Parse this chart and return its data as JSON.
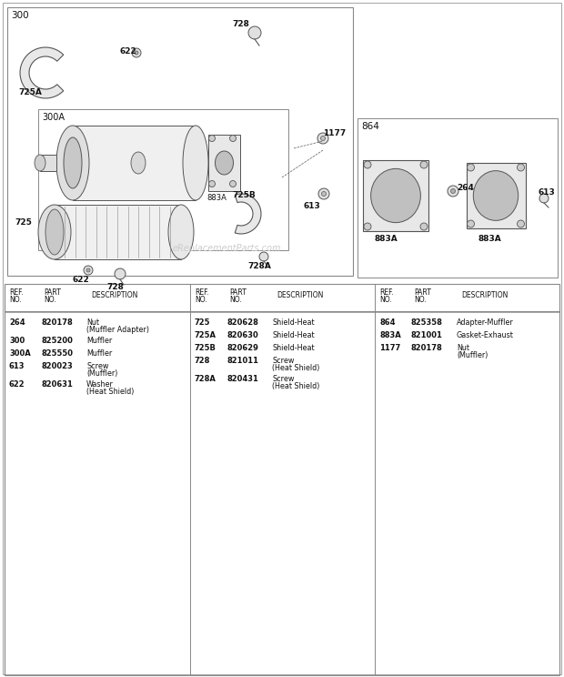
{
  "bg_color": "#ffffff",
  "watermark": "eReplacementParts.com",
  "table": {
    "col1": [
      [
        "264",
        "820178",
        "Nut",
        "(Muffler Adapter)"
      ],
      [
        "300",
        "825200",
        "Muffler",
        ""
      ],
      [
        "300A",
        "825550",
        "Muffler",
        ""
      ],
      [
        "613",
        "820023",
        "Screw",
        "(Muffler)"
      ],
      [
        "622",
        "820631",
        "Washer",
        "(Heat Shield)"
      ]
    ],
    "col2": [
      [
        "725",
        "820628",
        "Shield-Heat",
        ""
      ],
      [
        "725A",
        "820630",
        "Shield-Heat",
        ""
      ],
      [
        "725B",
        "820629",
        "Shield-Heat",
        ""
      ],
      [
        "728",
        "821011",
        "Screw",
        "(Heat Shield)"
      ],
      [
        "728A",
        "820431",
        "Screw",
        "(Heat Shield)"
      ]
    ],
    "col3": [
      [
        "864",
        "825358",
        "Adapter-Muffler",
        ""
      ],
      [
        "883A",
        "821001",
        "Gasket-Exhaust",
        ""
      ],
      [
        "1177",
        "820178",
        "Nut",
        "(Muffler)"
      ]
    ]
  }
}
